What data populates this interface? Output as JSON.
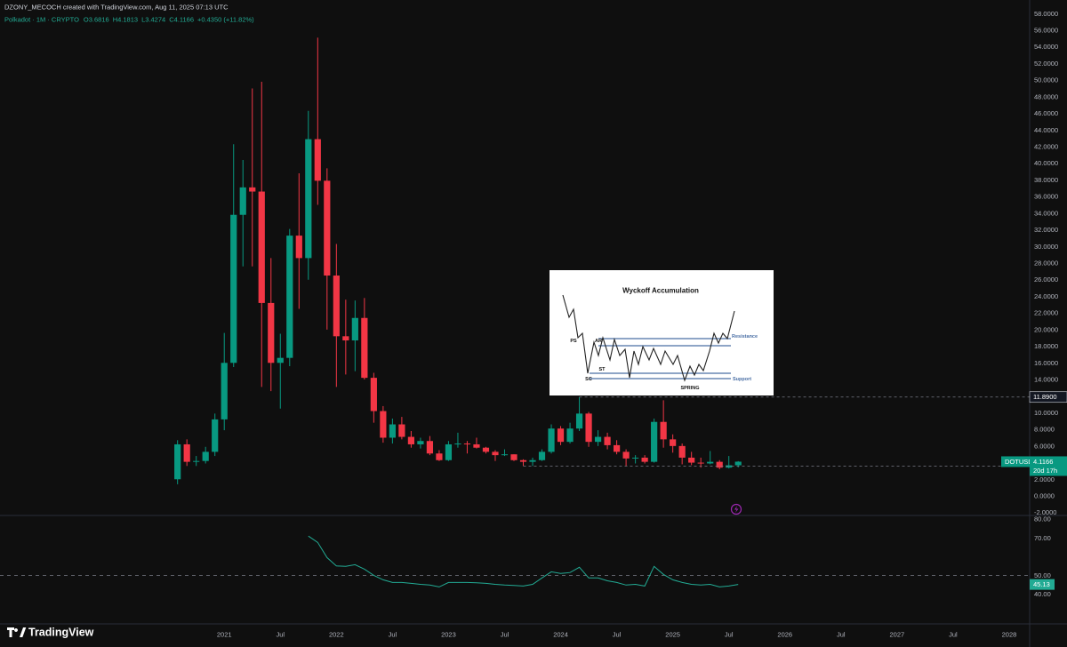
{
  "header": {
    "credit": "DZONY_MECOCH created with TradingView.com, Aug 11, 2025 07:13 UTC",
    "symbol": "Polkadot · 1M · CRYPTO",
    "ohlc_labels": [
      "O3.6816",
      "H4.1813",
      "L3.4274",
      "C4.1166",
      "+0.4350 (+11.82%)"
    ]
  },
  "brand": "TradingView",
  "inset": {
    "title": "Wyckoff Accumulation",
    "labels": [
      "PS",
      "AR",
      "ST",
      "SC",
      "SPRING"
    ],
    "levels": [
      "Resistance",
      "Support"
    ]
  },
  "chart_data": [
    {
      "type": "candlestick",
      "up_color": "#089981",
      "down_color": "#f23645",
      "grid": false,
      "x": [
        "2020-08",
        "2020-09",
        "2020-10",
        "2020-11",
        "2020-12",
        "2021-01",
        "2021-02",
        "2021-03",
        "2021-04",
        "2021-05",
        "2021-06",
        "2021-07",
        "2021-08",
        "2021-09",
        "2021-10",
        "2021-11",
        "2021-12",
        "2022-01",
        "2022-02",
        "2022-03",
        "2022-04",
        "2022-05",
        "2022-06",
        "2022-07",
        "2022-08",
        "2022-09",
        "2022-10",
        "2022-11",
        "2022-12",
        "2023-01",
        "2023-02",
        "2023-03",
        "2023-04",
        "2023-05",
        "2023-06",
        "2023-07",
        "2023-08",
        "2023-09",
        "2023-10",
        "2023-11",
        "2023-12",
        "2024-01",
        "2024-02",
        "2024-03",
        "2024-04",
        "2024-05",
        "2024-06",
        "2024-07",
        "2024-08",
        "2024-09",
        "2024-10",
        "2024-11",
        "2024-12",
        "2025-01",
        "2025-02",
        "2025-03",
        "2025-04",
        "2025-05",
        "2025-06",
        "2025-07",
        "2025-08"
      ],
      "open": [
        2.0,
        6.2,
        4.1,
        4.2,
        5.3,
        9.2,
        16.0,
        33.8,
        37.1,
        36.6,
        23.2,
        16.0,
        16.6,
        31.3,
        28.6,
        42.9,
        37.9,
        26.5,
        19.2,
        18.7,
        21.4,
        14.2,
        10.2,
        7.0,
        8.6,
        7.1,
        6.2,
        6.6,
        5.1,
        4.3,
        6.2,
        6.3,
        6.2,
        5.8,
        5.3,
        4.9,
        5.0,
        4.3,
        4.1,
        4.3,
        5.3,
        8.1,
        6.5,
        8.1,
        9.9,
        6.5,
        7.1,
        6.1,
        5.3,
        4.5,
        4.6,
        4.1,
        8.9,
        6.8,
        6.0,
        4.6,
        4.0,
        3.9,
        4.1,
        3.4,
        3.6816
      ],
      "high": [
        6.7,
        6.8,
        4.8,
        5.9,
        9.9,
        19.6,
        42.3,
        40.4,
        49.0,
        49.8,
        28.6,
        19.5,
        32.1,
        38.8,
        46.3,
        55.1,
        39.4,
        30.3,
        23.6,
        23.5,
        23.8,
        14.8,
        10.8,
        9.3,
        9.5,
        7.8,
        7.0,
        7.2,
        5.5,
        6.6,
        7.6,
        6.6,
        7.0,
        5.9,
        5.5,
        5.6,
        5.0,
        4.4,
        4.6,
        5.6,
        8.6,
        8.4,
        8.8,
        11.89,
        10.1,
        7.9,
        7.6,
        6.7,
        5.6,
        4.9,
        4.9,
        9.3,
        11.5,
        7.4,
        6.3,
        5.3,
        4.6,
        5.4,
        4.3,
        4.8,
        4.1813
      ],
      "low": [
        1.4,
        3.6,
        3.6,
        3.9,
        4.8,
        7.9,
        15.5,
        27.6,
        27.6,
        13.1,
        12.6,
        10.5,
        15.6,
        22.5,
        26.0,
        35.0,
        20.0,
        13.1,
        14.6,
        15.0,
        14.0,
        8.8,
        6.4,
        6.3,
        6.8,
        5.8,
        5.7,
        4.9,
        4.2,
        4.2,
        5.8,
        5.1,
        5.7,
        5.1,
        4.2,
        4.8,
        4.2,
        3.6,
        3.6,
        4.2,
        5.1,
        6.1,
        6.3,
        7.8,
        5.9,
        6.0,
        5.6,
        5.0,
        3.6,
        3.9,
        3.9,
        4.0,
        5.8,
        5.2,
        3.8,
        3.7,
        3.4,
        3.8,
        3.2,
        3.3,
        3.4274
      ],
      "close": [
        6.2,
        4.1,
        4.2,
        5.3,
        9.2,
        16.0,
        33.8,
        37.1,
        36.6,
        23.2,
        16.0,
        16.6,
        31.3,
        28.6,
        42.9,
        37.9,
        26.5,
        19.2,
        18.7,
        21.4,
        14.2,
        10.2,
        7.0,
        8.6,
        7.1,
        6.2,
        6.6,
        5.1,
        4.3,
        6.2,
        6.3,
        6.2,
        5.8,
        5.3,
        4.9,
        5.0,
        4.3,
        4.1,
        4.3,
        5.3,
        8.1,
        6.5,
        8.1,
        9.9,
        6.5,
        7.1,
        6.1,
        5.3,
        4.5,
        4.6,
        4.1,
        8.9,
        6.8,
        6.0,
        4.6,
        4.0,
        3.9,
        4.1,
        3.4,
        3.6816,
        4.1166
      ],
      "xlim": [
        "2019-01",
        "2028-03"
      ],
      "xticks": [
        {
          "value": "2021-01",
          "label": "2021"
        },
        {
          "value": "2021-07",
          "label": "Jul"
        },
        {
          "value": "2022-01",
          "label": "2022"
        },
        {
          "value": "2022-07",
          "label": "Jul"
        },
        {
          "value": "2023-01",
          "label": "2023"
        },
        {
          "value": "2023-07",
          "label": "Jul"
        },
        {
          "value": "2024-01",
          "label": "2024"
        },
        {
          "value": "2024-07",
          "label": "Jul"
        },
        {
          "value": "2025-01",
          "label": "2025"
        },
        {
          "value": "2025-07",
          "label": "Jul"
        },
        {
          "value": "2026-01",
          "label": "2026"
        },
        {
          "value": "2026-07",
          "label": "Jul"
        },
        {
          "value": "2027-01",
          "label": "2027"
        },
        {
          "value": "2027-07",
          "label": "Jul"
        },
        {
          "value": "2028-01",
          "label": "2028"
        }
      ],
      "ylim": [
        -2,
        58
      ],
      "yticks": [
        {
          "value": -2,
          "label": "-2.0000"
        },
        {
          "value": 0,
          "label": "0.0000"
        },
        {
          "value": 2,
          "label": "2.0000"
        },
        {
          "value": 4,
          "label": "4.0000"
        },
        {
          "value": 6,
          "label": "6.0000"
        },
        {
          "value": 8,
          "label": "8.0000"
        },
        {
          "value": 10,
          "label": "10.0000"
        },
        {
          "value": 12,
          "label": "12.0000"
        },
        {
          "value": 14,
          "label": "14.0000"
        },
        {
          "value": 16,
          "label": "16.0000"
        },
        {
          "value": 18,
          "label": "18.0000"
        },
        {
          "value": 20,
          "label": "20.0000"
        },
        {
          "value": 22,
          "label": "22.0000"
        },
        {
          "value": 24,
          "label": "24.0000"
        },
        {
          "value": 26,
          "label": "26.0000"
        },
        {
          "value": 28,
          "label": "28.0000"
        },
        {
          "value": 30,
          "label": "30.0000"
        },
        {
          "value": 32,
          "label": "32.0000"
        },
        {
          "value": 34,
          "label": "34.0000"
        },
        {
          "value": 36,
          "label": "36.0000"
        },
        {
          "value": 38,
          "label": "38.0000"
        },
        {
          "value": 40,
          "label": "40.0000"
        },
        {
          "value": 42,
          "label": "42.0000"
        },
        {
          "value": 44,
          "label": "44.0000"
        },
        {
          "value": 46,
          "label": "46.0000"
        },
        {
          "value": 48,
          "label": "48.0000"
        },
        {
          "value": 50,
          "label": "50.0000"
        },
        {
          "value": 52,
          "label": "52.0000"
        },
        {
          "value": 54,
          "label": "54.0000"
        },
        {
          "value": 56,
          "label": "56.0000"
        },
        {
          "value": 58,
          "label": "58.0000"
        }
      ],
      "hlines": [
        {
          "value": 11.89,
          "label": "11.8900",
          "start": "2024-03",
          "color": "#131722"
        },
        {
          "value": 3.5756,
          "start": "2023-09",
          "color": "#089981"
        }
      ],
      "last_price_label": "DOTUSD",
      "countdown": "20d 17h"
    },
    {
      "type": "line",
      "color": "#22ab94",
      "level": 50,
      "x": [
        "2021-10",
        "2021-11",
        "2021-12",
        "2022-01",
        "2022-02",
        "2022-03",
        "2022-04",
        "2022-05",
        "2022-06",
        "2022-07",
        "2022-08",
        "2022-09",
        "2022-10",
        "2022-11",
        "2022-12",
        "2023-01",
        "2023-02",
        "2023-03",
        "2023-04",
        "2023-05",
        "2023-06",
        "2023-07",
        "2023-08",
        "2023-09",
        "2023-10",
        "2023-11",
        "2023-12",
        "2024-01",
        "2024-02",
        "2024-03",
        "2024-04",
        "2024-05",
        "2024-06",
        "2024-07",
        "2024-08",
        "2024-09",
        "2024-10",
        "2024-11",
        "2024-12",
        "2025-01",
        "2025-02",
        "2025-03",
        "2025-04",
        "2025-05",
        "2025-06",
        "2025-07",
        "2025-08"
      ],
      "values": [
        71,
        67.6,
        59.5,
        55,
        54.8,
        55.7,
        53.3,
        50,
        47.6,
        46.2,
        46.2,
        45.7,
        45.2,
        44.8,
        43.8,
        46.2,
        46.2,
        46.2,
        46,
        45.7,
        45.2,
        44.8,
        44.6,
        44.3,
        45.2,
        48.6,
        51.9,
        51,
        51.5,
        54.3,
        48.6,
        48.6,
        47.1,
        46.2,
        44.8,
        45.2,
        44.3,
        54.8,
        50.5,
        47.6,
        46.2,
        45.2,
        44.8,
        45.2,
        43.8,
        44.3,
        45.13
      ],
      "ylim": [
        25,
        82
      ],
      "yticks": [
        {
          "value": 40,
          "label": "40.00"
        },
        {
          "value": 50,
          "label": "50.00"
        },
        {
          "value": 70,
          "label": "70.00"
        },
        {
          "value": 80,
          "label": "80.00"
        }
      ]
    }
  ]
}
